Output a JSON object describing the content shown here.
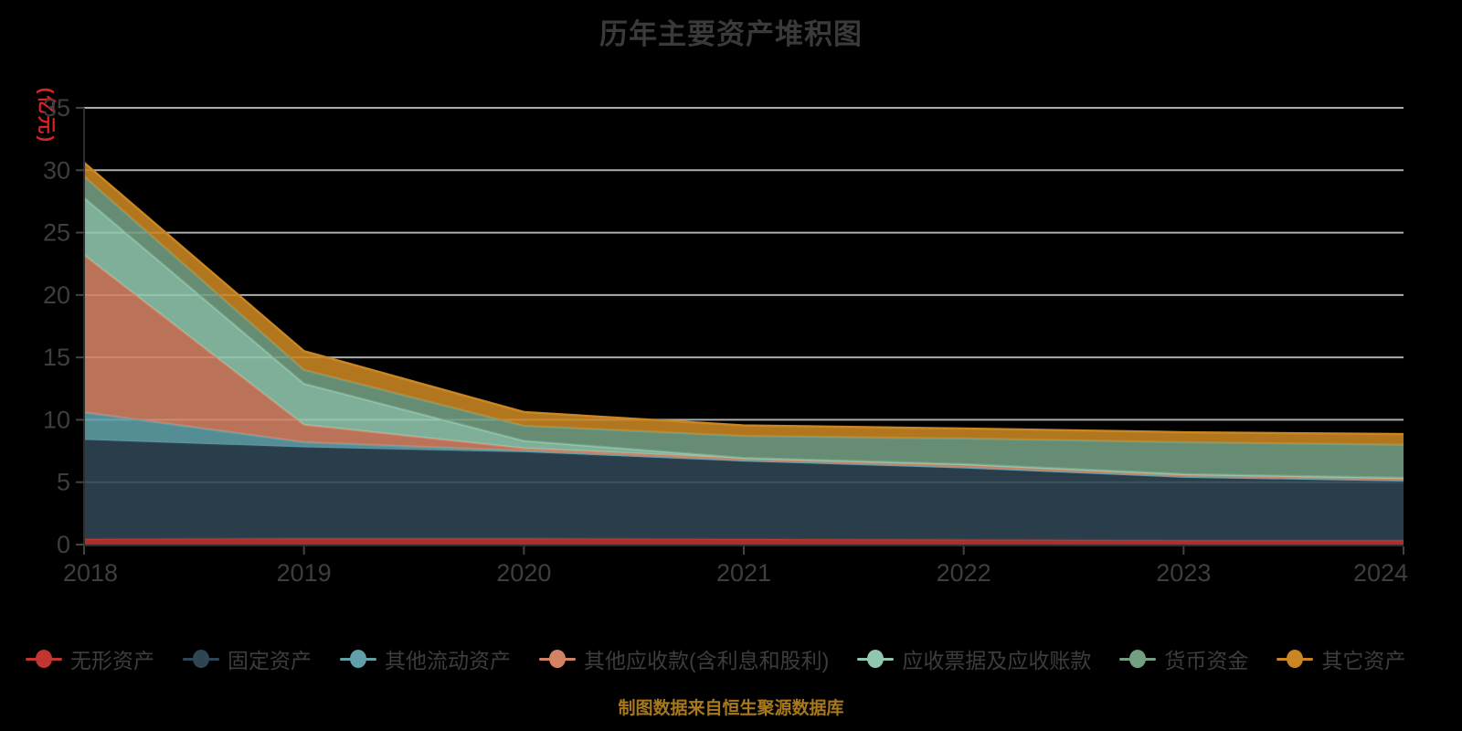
{
  "title": "历年主要资产堆积图",
  "y_axis_unit": "(亿元)",
  "footer": "制图数据来自恒生聚源数据库",
  "colors": {
    "background": "#000000",
    "title_text": "#3a3a3a",
    "axis_text": "#3e3e3e",
    "grid_line": "#cccccc",
    "axis_line": "#2e2e2e",
    "unit_label": "#dd2222",
    "footer_text": "#a8791b"
  },
  "chart_data": {
    "type": "area",
    "stacked": true,
    "title": "历年主要资产堆积图",
    "xlabel": "",
    "ylabel": "(亿元)",
    "x": [
      2018,
      2019,
      2020,
      2021,
      2022,
      2023,
      2024
    ],
    "x_labels": [
      "2018",
      "2019",
      "2020",
      "2021",
      "2022",
      "2023",
      "2024"
    ],
    "ylim": [
      0,
      35
    ],
    "y_ticks": [
      0,
      5,
      10,
      15,
      20,
      25,
      30,
      35
    ],
    "y_tick_labels": [
      "0",
      "5",
      "10",
      "15",
      "20",
      "25",
      "30",
      "35"
    ],
    "grid": true,
    "legend_position": "bottom",
    "series": [
      {
        "name": "无形资产",
        "color": "#c23531",
        "values": [
          0.45,
          0.5,
          0.5,
          0.45,
          0.4,
          0.35,
          0.35
        ]
      },
      {
        "name": "固定资产",
        "color": "#2f4554",
        "values": [
          7.95,
          7.3,
          6.9,
          6.25,
          5.75,
          5.05,
          4.75
        ]
      },
      {
        "name": "其他流动资产",
        "color": "#61a0a8",
        "values": [
          2.2,
          0.4,
          0.12,
          0.05,
          0.05,
          0.05,
          0.05
        ]
      },
      {
        "name": "其他应收款(含利息和股利)",
        "color": "#d48265",
        "values": [
          12.6,
          1.4,
          0.2,
          0.15,
          0.2,
          0.15,
          0.15
        ]
      },
      {
        "name": "应收票据及应收账款",
        "color": "#91c7ae",
        "values": [
          4.6,
          3.3,
          0.6,
          0.05,
          0.05,
          0.05,
          0.05
        ]
      },
      {
        "name": "货币资金",
        "color": "#749f83",
        "values": [
          1.7,
          1.1,
          1.2,
          1.75,
          2.05,
          2.55,
          2.65
        ]
      },
      {
        "name": "其它资产",
        "color": "#ca8622",
        "values": [
          1.1,
          1.5,
          1.1,
          0.85,
          0.8,
          0.8,
          0.85
        ]
      }
    ],
    "stacked_totals": [
      30.6,
      15.5,
      10.62,
      9.55,
      9.3,
      9.0,
      8.85
    ]
  }
}
